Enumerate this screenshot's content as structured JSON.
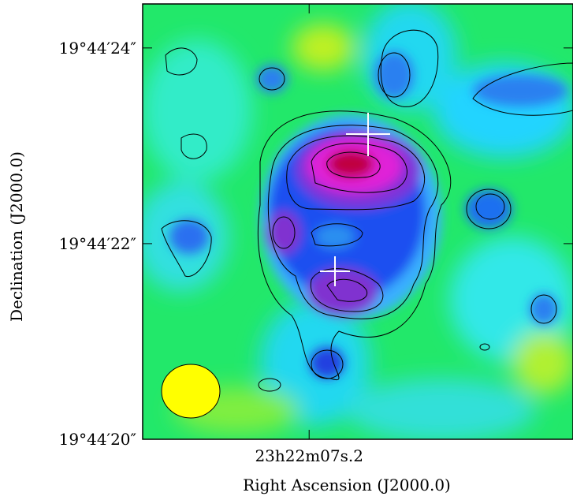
{
  "chart_data": {
    "type": "image",
    "xlabel": "Right Ascension (J2000.0)",
    "ylabel": "Declination (J2000.0)",
    "xlim": [
      7.3205,
      7.009
    ],
    "xticks": [
      {
        "value": 7.2,
        "label": "23h22m07s.2"
      }
    ],
    "ylim": [
      20,
      24.45
    ],
    "yticks": [
      {
        "value": 20,
        "label": "19°44′20″"
      },
      {
        "value": 22,
        "label": "19°44′22″"
      },
      {
        "value": 24,
        "label": "19°44′24″"
      }
    ]
  }
}
